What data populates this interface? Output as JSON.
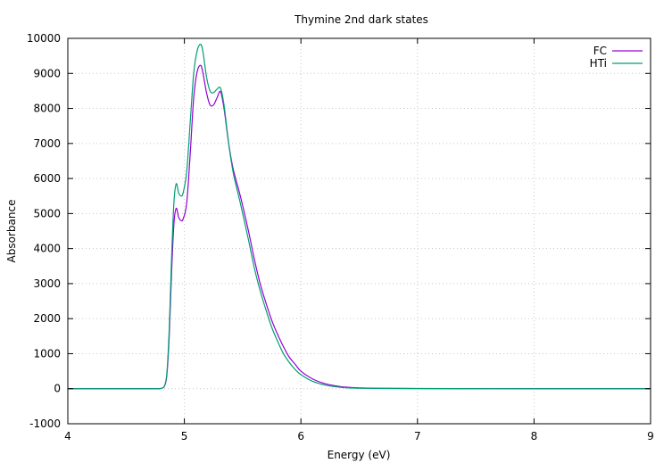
{
  "chart_data": {
    "type": "line",
    "title": "Thymine 2nd dark states",
    "xlabel": "Energy (eV)",
    "ylabel": "Absorbance",
    "xlim": [
      4,
      9
    ],
    "ylim": [
      -1000,
      10000
    ],
    "x_ticks": [
      4,
      5,
      6,
      7,
      8,
      9
    ],
    "y_ticks": [
      -1000,
      0,
      1000,
      2000,
      3000,
      4000,
      5000,
      6000,
      7000,
      8000,
      9000,
      10000
    ],
    "grid": true,
    "legend_position": "top-right",
    "series": [
      {
        "name": "FC",
        "color": "#9400d3",
        "x": [
          4.0,
          4.5,
          4.75,
          4.8,
          4.83,
          4.85,
          4.87,
          4.89,
          4.91,
          4.93,
          4.95,
          4.97,
          4.99,
          5.02,
          5.05,
          5.08,
          5.11,
          5.14,
          5.16,
          5.19,
          5.22,
          5.25,
          5.28,
          5.31,
          5.34,
          5.38,
          5.42,
          5.48,
          5.55,
          5.6,
          5.65,
          5.7,
          5.75,
          5.8,
          5.85,
          5.9,
          5.95,
          6.0,
          6.1,
          6.2,
          6.3,
          6.4,
          6.6,
          7.0,
          8.0,
          9.0
        ],
        "y": [
          0,
          0,
          0,
          10,
          80,
          400,
          1500,
          3300,
          4700,
          5150,
          4900,
          4800,
          4850,
          5300,
          6700,
          8300,
          9050,
          9230,
          9000,
          8450,
          8100,
          8100,
          8300,
          8480,
          8000,
          7000,
          6250,
          5500,
          4500,
          3700,
          3000,
          2450,
          1950,
          1550,
          1200,
          900,
          700,
          500,
          280,
          150,
          80,
          40,
          15,
          5,
          0,
          0
        ]
      },
      {
        "name": "HTi",
        "color": "#009e73",
        "x": [
          4.0,
          4.5,
          4.75,
          4.8,
          4.83,
          4.85,
          4.87,
          4.89,
          4.91,
          4.93,
          4.95,
          4.97,
          4.99,
          5.02,
          5.05,
          5.08,
          5.11,
          5.14,
          5.16,
          5.19,
          5.22,
          5.25,
          5.28,
          5.31,
          5.34,
          5.38,
          5.42,
          5.48,
          5.55,
          5.6,
          5.65,
          5.7,
          5.75,
          5.8,
          5.85,
          5.9,
          5.95,
          6.0,
          6.1,
          6.2,
          6.3,
          6.4,
          6.6,
          7.0,
          8.0,
          9.0
        ],
        "y": [
          0,
          0,
          0,
          10,
          90,
          450,
          1700,
          3700,
          5300,
          5850,
          5600,
          5500,
          5600,
          6200,
          7600,
          9000,
          9650,
          9830,
          9600,
          8900,
          8500,
          8450,
          8550,
          8580,
          8100,
          7000,
          6150,
          5300,
          4250,
          3450,
          2800,
          2250,
          1750,
          1350,
          1000,
          750,
          550,
          400,
          210,
          110,
          55,
          25,
          10,
          3,
          0,
          0
        ]
      }
    ]
  }
}
